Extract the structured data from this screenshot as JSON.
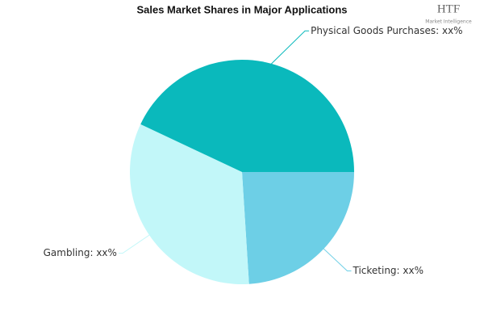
{
  "chart_data": {
    "type": "pie",
    "title": "Sales Market Shares in Major Applications",
    "categories": [
      "Ticketing: xx%",
      "Gambling: xx%",
      "Physical Goods Purchases: xx%"
    ],
    "values": [
      24,
      33,
      43
    ],
    "colors": [
      "#6dcfe6",
      "#c2f7f9",
      "#0ab9bc"
    ],
    "watermark": "HTF",
    "watermark_sub": "Market Intelligence"
  }
}
